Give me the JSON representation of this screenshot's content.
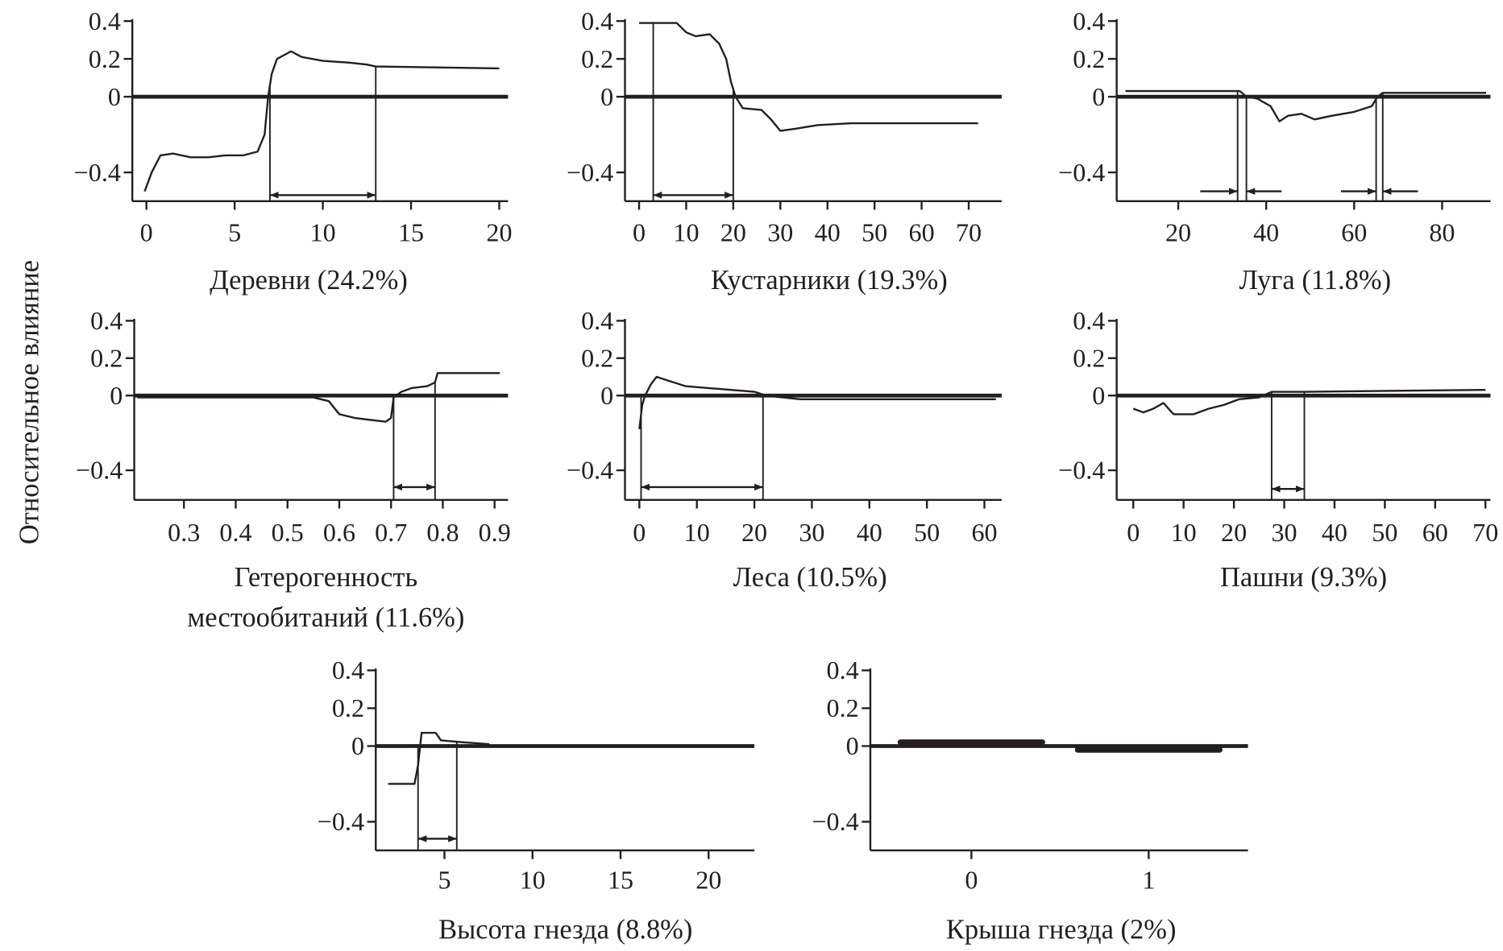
{
  "ylabel": "Относительное влияние",
  "colors": {
    "line": "#231f20",
    "background": "#ffffff"
  },
  "chart_data": [
    {
      "type": "line",
      "title": "Деревни (24.2%)",
      "xticks": [
        0,
        5,
        10,
        15,
        20
      ],
      "yticks": [
        0.4,
        0.2,
        0,
        -0.4
      ],
      "ylim": [
        -0.53,
        0.42
      ],
      "xlim": [
        -0.8,
        20.5
      ],
      "x": [
        -0.1,
        0.3,
        0.8,
        1.5,
        2.5,
        3.5,
        4.5,
        5.5,
        6.3,
        6.7,
        6.9,
        7.1,
        7.4,
        8.2,
        8.8,
        10,
        11.5,
        12.5,
        13,
        20
      ],
      "y": [
        -0.5,
        -0.4,
        -0.31,
        -0.3,
        -0.32,
        -0.32,
        -0.31,
        -0.31,
        -0.29,
        -0.2,
        0.0,
        0.12,
        0.2,
        0.24,
        0.21,
        0.19,
        0.18,
        0.17,
        0.16,
        0.15
      ],
      "markers": [
        7,
        13
      ],
      "arrows": [
        {
          "from": 7,
          "to": 13,
          "y": -0.52,
          "type": "double"
        }
      ]
    },
    {
      "type": "line",
      "title": "Кустарники (19.3%)",
      "xticks": [
        0,
        10,
        20,
        30,
        40,
        50,
        60,
        70
      ],
      "yticks": [
        0.4,
        0.2,
        0,
        -0.4
      ],
      "ylim": [
        -0.53,
        0.42
      ],
      "xlim": [
        -3,
        77
      ],
      "x": [
        0,
        8,
        10,
        12,
        15,
        17,
        18.5,
        19.5,
        20.5,
        22,
        26,
        28,
        30,
        33,
        38,
        45,
        72
      ],
      "y": [
        0.39,
        0.39,
        0.34,
        0.32,
        0.33,
        0.28,
        0.2,
        0.08,
        0.0,
        -0.06,
        -0.07,
        -0.12,
        -0.18,
        -0.17,
        -0.15,
        -0.14,
        -0.14
      ],
      "markers": [
        3,
        20
      ],
      "arrows": [
        {
          "from": 3,
          "to": 20,
          "y": -0.52,
          "type": "double"
        }
      ]
    },
    {
      "type": "line",
      "title": "Луга (11.8%)",
      "xticks": [
        20,
        40,
        60,
        80
      ],
      "yticks": [
        0.4,
        0.2,
        0,
        -0.4
      ],
      "ylim": [
        -0.53,
        0.42
      ],
      "xlim": [
        6,
        91
      ],
      "x": [
        8,
        34,
        35.5,
        38,
        41,
        43,
        45,
        48,
        51,
        55,
        60,
        64,
        65.3,
        66.5,
        90
      ],
      "y": [
        0.03,
        0.03,
        0.0,
        -0.01,
        -0.05,
        -0.13,
        -0.1,
        -0.09,
        -0.12,
        -0.1,
        -0.08,
        -0.05,
        0.0,
        0.02,
        0.02
      ],
      "markers": [
        33.5,
        35.5,
        65,
        66.5
      ],
      "arrows": [
        {
          "from": 25,
          "to": 33.5,
          "y": -0.5,
          "type": "single"
        },
        {
          "from": 43.5,
          "to": 35.5,
          "y": -0.5,
          "type": "single"
        },
        {
          "from": 57,
          "to": 65,
          "y": -0.5,
          "type": "single"
        },
        {
          "from": 74.5,
          "to": 66.5,
          "y": -0.5,
          "type": "single"
        }
      ]
    },
    {
      "type": "line",
      "title": "Гетерогенность местообитаний (11.6%)",
      "title_lines": [
        "Гетерогенность",
        "местообитаний (11.6%)"
      ],
      "xticks": [
        0.3,
        0.4,
        0.5,
        0.6,
        0.7,
        0.8,
        0.9
      ],
      "yticks": [
        0.4,
        0.2,
        0,
        -0.4
      ],
      "ylim": [
        -0.53,
        0.42
      ],
      "xlim": [
        0.204,
        0.926
      ],
      "x": [
        0.21,
        0.55,
        0.58,
        0.6,
        0.63,
        0.66,
        0.69,
        0.7,
        0.705,
        0.72,
        0.74,
        0.77,
        0.785,
        0.79,
        0.91
      ],
      "y": [
        -0.01,
        -0.01,
        -0.03,
        -0.1,
        -0.12,
        -0.13,
        -0.14,
        -0.12,
        -0.01,
        0.02,
        0.04,
        0.05,
        0.07,
        0.12,
        0.12
      ],
      "markers": [
        0.705,
        0.785
      ],
      "arrows": [
        {
          "from": 0.705,
          "to": 0.785,
          "y": -0.49,
          "type": "double"
        }
      ]
    },
    {
      "type": "line",
      "title": "Леса (10.5%)",
      "xticks": [
        0,
        10,
        20,
        30,
        40,
        50,
        60
      ],
      "yticks": [
        0.4,
        0.2,
        0,
        -0.4
      ],
      "ylim": [
        -0.53,
        0.42
      ],
      "xlim": [
        -2.5,
        63
      ],
      "x": [
        0,
        0.5,
        1,
        2,
        3,
        5,
        8,
        12,
        16,
        20,
        22,
        25,
        28,
        62
      ],
      "y": [
        -0.18,
        -0.05,
        0.0,
        0.06,
        0.1,
        0.08,
        0.05,
        0.04,
        0.03,
        0.02,
        0.0,
        -0.01,
        -0.02,
        -0.02
      ],
      "markers": [
        0.3,
        21.5
      ],
      "arrows": [
        {
          "from": 0.3,
          "to": 21.5,
          "y": -0.49,
          "type": "double"
        }
      ]
    },
    {
      "type": "line",
      "title": "Пашни (9.3%)",
      "xticks": [
        0,
        10,
        20,
        30,
        40,
        50,
        60,
        70
      ],
      "yticks": [
        0.4,
        0.2,
        0,
        -0.4
      ],
      "ylim": [
        -0.53,
        0.42
      ],
      "xlim": [
        -3.3,
        71
      ],
      "x": [
        0,
        2,
        4,
        6,
        8,
        10,
        12,
        15,
        18,
        21,
        25,
        27.5,
        34,
        70
      ],
      "y": [
        -0.07,
        -0.09,
        -0.07,
        -0.04,
        -0.1,
        -0.1,
        -0.1,
        -0.07,
        -0.05,
        -0.02,
        -0.01,
        0.02,
        0.02,
        0.03
      ],
      "markers": [
        27.5,
        34
      ],
      "arrows": [
        {
          "from": 27.5,
          "to": 34,
          "y": -0.5,
          "type": "double"
        }
      ]
    },
    {
      "type": "line",
      "title": "Высота гнезда (8.8%)",
      "xticks": [
        5,
        10,
        15,
        20
      ],
      "yticks": [
        0.4,
        0.2,
        0,
        -0.4
      ],
      "ylim": [
        -0.53,
        0.42
      ],
      "xlim": [
        1.1,
        22.6
      ],
      "x": [
        1.8,
        3.3,
        3.5,
        3.7,
        4.5,
        4.8,
        6,
        7.5,
        7.6,
        22.5
      ],
      "y": [
        -0.2,
        -0.2,
        -0.1,
        0.07,
        0.07,
        0.03,
        0.02,
        0.01,
        0.0,
        0.0
      ],
      "markers": [
        3.5,
        5.7
      ],
      "arrows": [
        {
          "from": 3.5,
          "to": 5.7,
          "y": -0.49,
          "type": "double"
        }
      ]
    },
    {
      "type": "bar",
      "title": "Крыша гнезда (2%)",
      "xticks": [
        0,
        1
      ],
      "yticks": [
        0.4,
        0.2,
        0,
        -0.4
      ],
      "ylim": [
        -0.53,
        0.42
      ],
      "xlim": [
        -0.57,
        1.56
      ],
      "categories": [
        0,
        1
      ],
      "values": [
        0.02,
        -0.02
      ],
      "markers": [],
      "arrows": []
    }
  ]
}
